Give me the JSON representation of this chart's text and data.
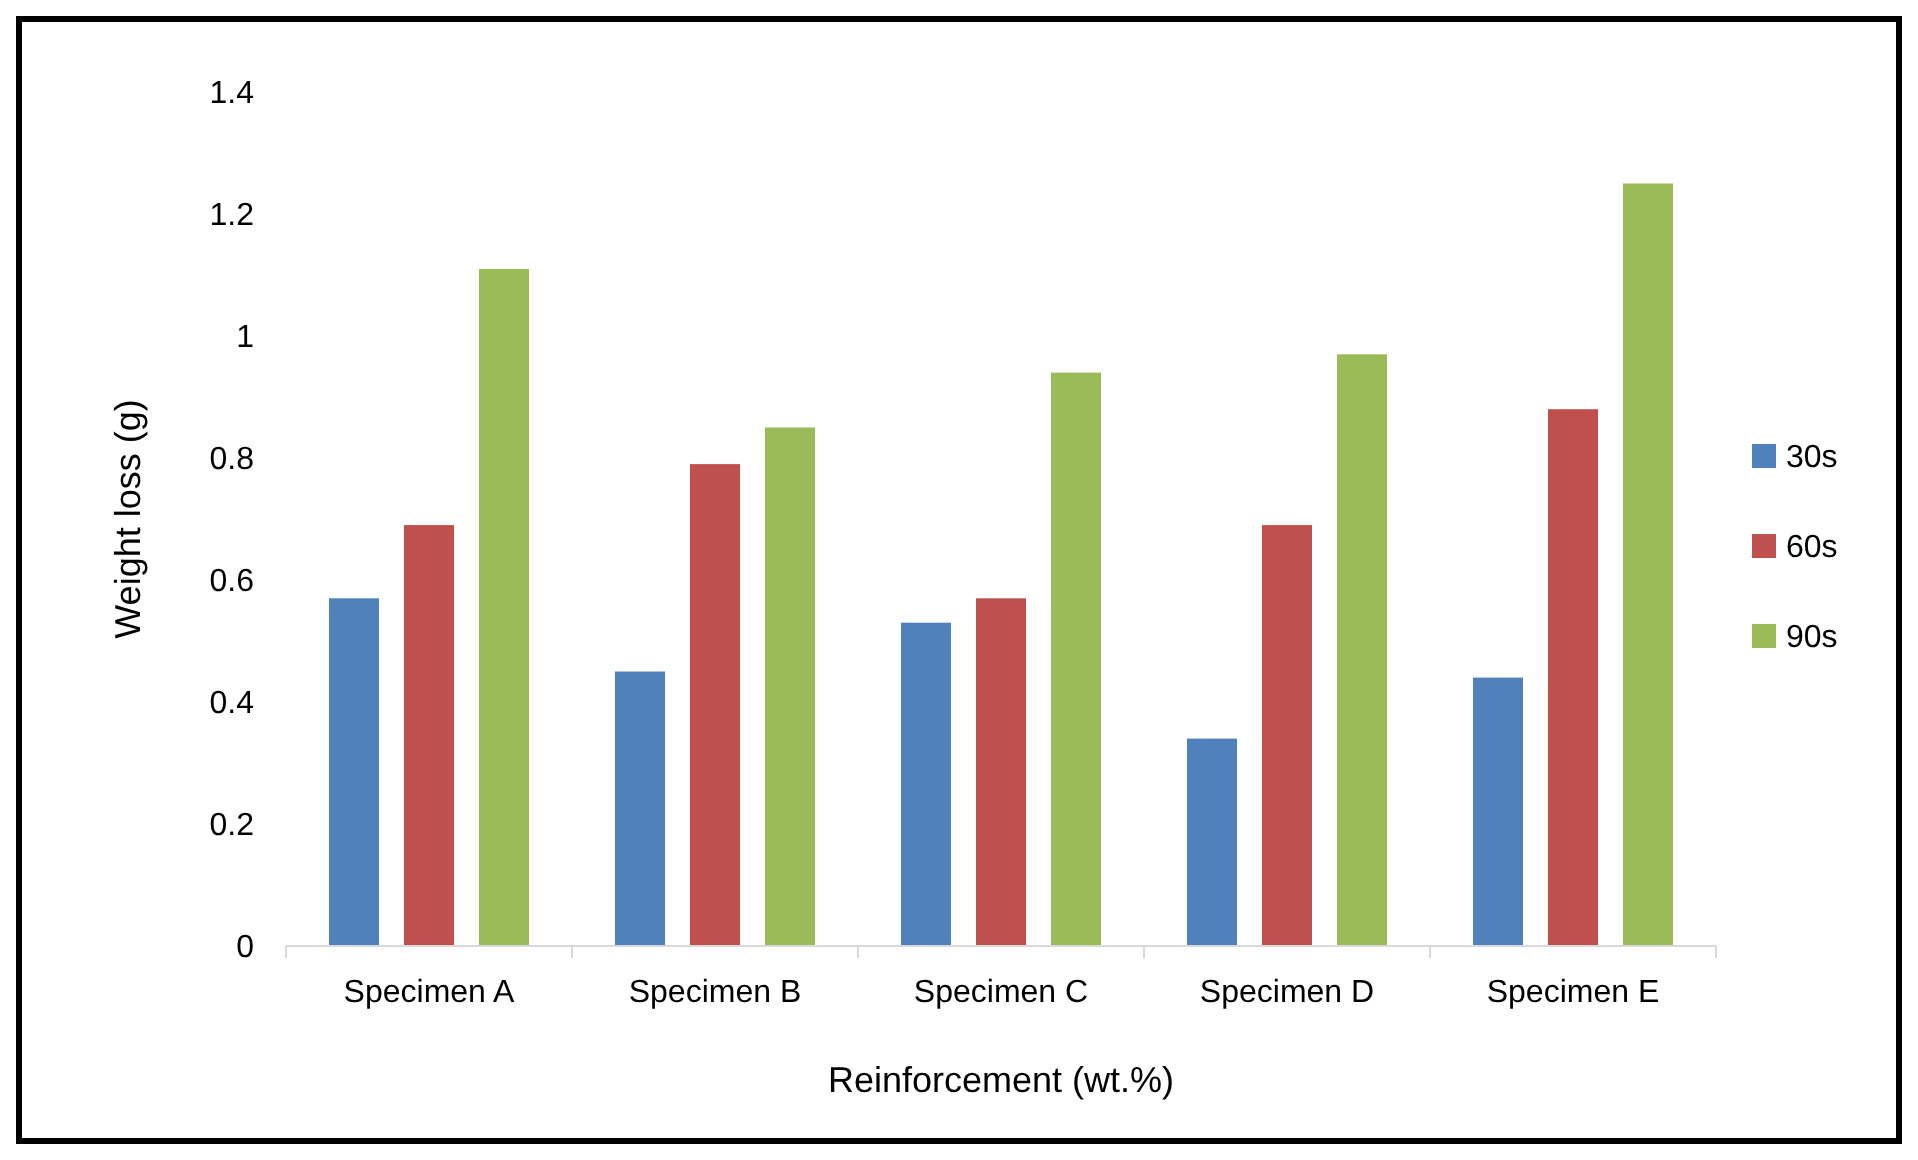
{
  "chart_data": {
    "type": "bar",
    "xlabel": "Reinforcement (wt.%)",
    "ylabel": "Weight loss (g)",
    "categories": [
      "Specimen A",
      "Specimen B",
      "Specimen C",
      "Specimen D",
      "Specimen E"
    ],
    "series": [
      {
        "name": "30s",
        "color": "#4f81bd",
        "values": [
          0.57,
          0.45,
          0.53,
          0.34,
          0.44
        ]
      },
      {
        "name": "60s",
        "color": "#c0504d",
        "values": [
          0.69,
          0.79,
          0.57,
          0.69,
          0.88
        ]
      },
      {
        "name": "90s",
        "color": "#9bbb59",
        "values": [
          1.11,
          0.85,
          0.94,
          0.97,
          1.25
        ]
      }
    ],
    "ylim": [
      0,
      1.4
    ],
    "yticks": [
      0,
      0.2,
      0.4,
      0.6,
      0.8,
      1,
      1.2,
      1.4
    ],
    "grid": false,
    "legend": "right"
  }
}
